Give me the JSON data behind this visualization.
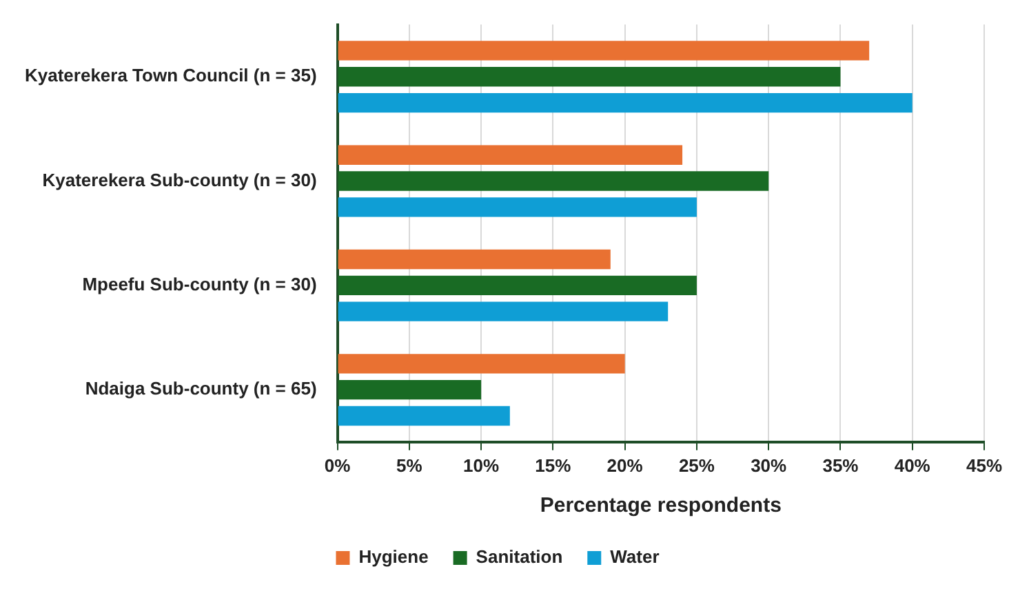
{
  "chart_data": {
    "type": "bar",
    "orientation": "horizontal",
    "xlabel": "Percentage respondents",
    "categories": [
      "Kyaterekera Town Council (n = 35)",
      "Kyaterekera Sub-county (n = 30)",
      "Mpeefu Sub-county (n = 30)",
      "Ndaiga Sub-county (n = 65)"
    ],
    "series": [
      {
        "name": "Hygiene",
        "color": "#e97132",
        "values": [
          37,
          24,
          19,
          20
        ]
      },
      {
        "name": "Sanitation",
        "color": "#196b24",
        "values": [
          35,
          30,
          25,
          10
        ]
      },
      {
        "name": "Water",
        "color": "#0f9ed5",
        "values": [
          40,
          25,
          23,
          12
        ]
      }
    ],
    "xlim": [
      0,
      45
    ],
    "xticks": [
      {
        "value": 0,
        "label": "0%"
      },
      {
        "value": 5,
        "label": "5%"
      },
      {
        "value": 10,
        "label": "10%"
      },
      {
        "value": 15,
        "label": "15%"
      },
      {
        "value": 20,
        "label": "20%"
      },
      {
        "value": 25,
        "label": "25%"
      },
      {
        "value": 30,
        "label": "30%"
      },
      {
        "value": 35,
        "label": "35%"
      },
      {
        "value": 40,
        "label": "40%"
      },
      {
        "value": 45,
        "label": "45%"
      }
    ],
    "grid": "x",
    "legend": "bottom"
  }
}
